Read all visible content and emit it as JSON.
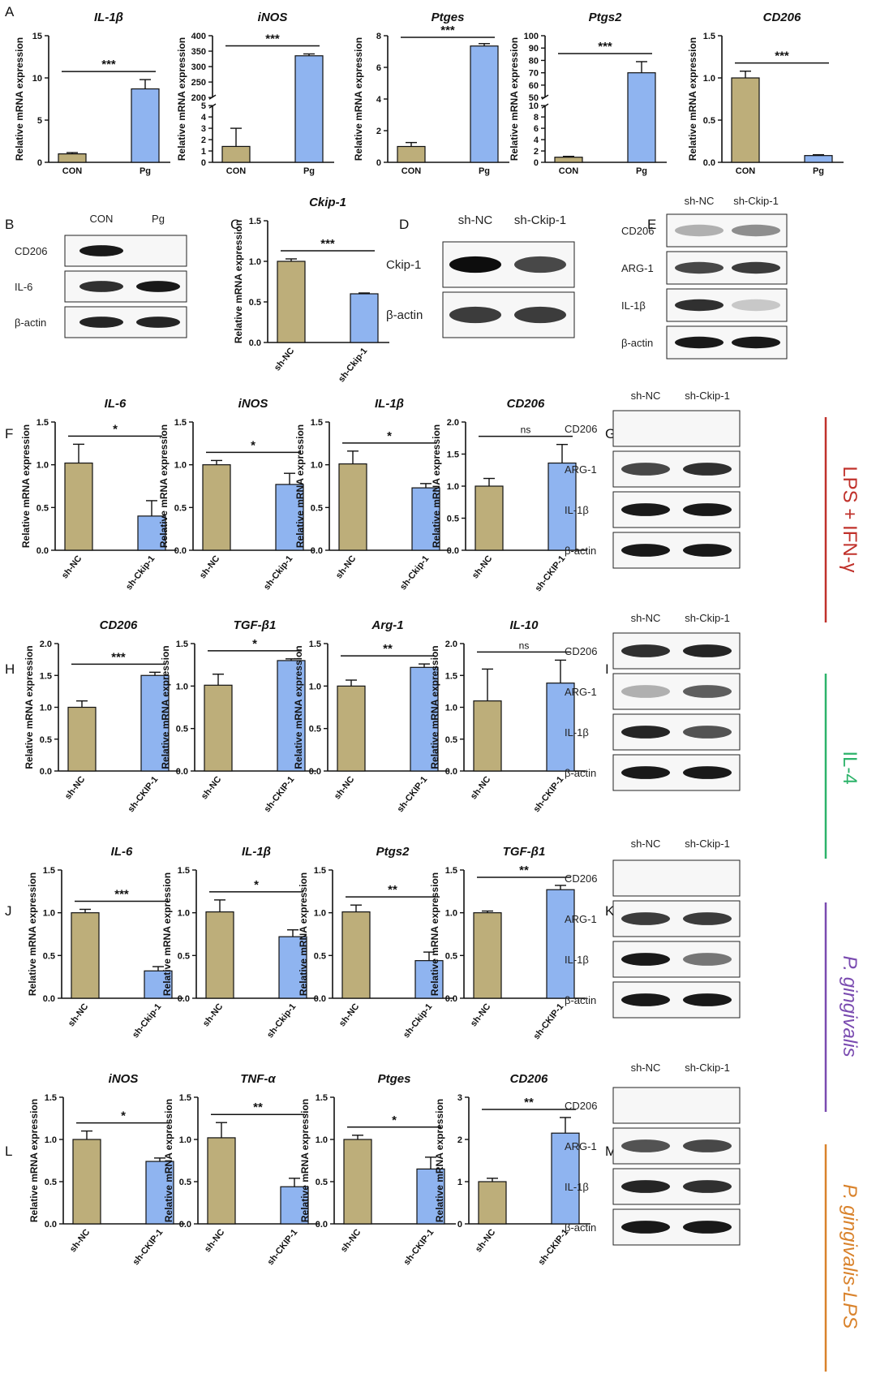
{
  "colors": {
    "con": "#BDAE7A",
    "treat": "#8FB4F0",
    "errorbar": "#111111"
  },
  "y_axis_label": "Relative mRNA expression",
  "conditions": [
    {
      "text": "LPS + IFN-γ",
      "color": "#C0312B"
    },
    {
      "text": "IL-4",
      "color": "#2DB36A"
    },
    {
      "text": "P. gingivalis",
      "color": "#7A4BB0"
    },
    {
      "text": "P. gingivalis-LPS",
      "color": "#D9822B"
    }
  ],
  "chart_data": [
    {
      "panel": "A",
      "type": "bar",
      "title": "IL-1β",
      "categories": [
        "CON",
        "Pg"
      ],
      "values": [
        1.0,
        8.7
      ],
      "errors": [
        0.15,
        1.1
      ],
      "ylim": [
        0,
        15
      ],
      "yticks": [
        0,
        5,
        10,
        15
      ],
      "significance": "***"
    },
    {
      "panel": "A",
      "type": "bar",
      "title": "iNOS",
      "categories": [
        "CON",
        "Pg"
      ],
      "values": [
        1.4,
        335
      ],
      "errors": [
        1.6,
        6
      ],
      "broken_axis": {
        "lower": [
          0,
          5
        ],
        "upper": [
          200,
          400
        ]
      },
      "yticks": [
        "0",
        "1",
        "2",
        "3",
        "4",
        "5",
        "200",
        "250",
        "300",
        "350",
        "400"
      ],
      "significance": "***"
    },
    {
      "panel": "A",
      "type": "bar",
      "title": "Ptges",
      "categories": [
        "CON",
        "Pg"
      ],
      "values": [
        1.0,
        7.35
      ],
      "errors": [
        0.25,
        0.15
      ],
      "ylim": [
        0,
        8
      ],
      "yticks": [
        0,
        2,
        4,
        6,
        8
      ],
      "significance": "***"
    },
    {
      "panel": "A",
      "type": "bar",
      "title": "Ptgs2",
      "categories": [
        "CON",
        "Pg"
      ],
      "values": [
        0.9,
        70
      ],
      "errors": [
        0.15,
        9
      ],
      "broken_axis": {
        "lower": [
          0,
          10
        ],
        "upper": [
          50,
          100
        ]
      },
      "yticks": [
        "0",
        "2",
        "4",
        "6",
        "8",
        "10",
        "50",
        "60",
        "70",
        "80",
        "90",
        "100"
      ],
      "significance": "***"
    },
    {
      "panel": "A",
      "type": "bar",
      "title": "CD206",
      "categories": [
        "CON",
        "Pg"
      ],
      "values": [
        1.0,
        0.08
      ],
      "errors": [
        0.08,
        0.01
      ],
      "ylim": [
        0,
        1.5
      ],
      "yticks": [
        "0.0",
        "0.5",
        "1.0",
        "1.5"
      ],
      "significance": "***"
    },
    {
      "panel": "C",
      "type": "bar",
      "title": "Ckip-1",
      "categories": [
        "sh-NC",
        "sh-Ckip-1"
      ],
      "values": [
        1.0,
        0.6
      ],
      "errors": [
        0.03,
        0.01
      ],
      "ylim": [
        0,
        1.5
      ],
      "yticks": [
        "0.0",
        "0.5",
        "1.0",
        "1.5"
      ],
      "significance": "***"
    },
    {
      "panel": "F",
      "type": "bar",
      "title": "IL-6",
      "categories": [
        "sh-NC",
        "sh-Ckip-1"
      ],
      "values": [
        1.02,
        0.4
      ],
      "errors": [
        0.22,
        0.18
      ],
      "ylim": [
        0,
        1.5
      ],
      "yticks": [
        "0.0",
        "0.5",
        "1.0",
        "1.5"
      ],
      "significance": "*"
    },
    {
      "panel": "F",
      "type": "bar",
      "title": "iNOS",
      "categories": [
        "sh-NC",
        "sh-Ckip-1"
      ],
      "values": [
        1.0,
        0.77
      ],
      "errors": [
        0.05,
        0.13
      ],
      "ylim": [
        0,
        1.5
      ],
      "yticks": [
        "0.0",
        "0.5",
        "1.0",
        "1.5"
      ],
      "significance": "*"
    },
    {
      "panel": "F",
      "type": "bar",
      "title": "IL-1β",
      "categories": [
        "sh-NC",
        "sh-Ckip-1"
      ],
      "values": [
        1.01,
        0.73
      ],
      "errors": [
        0.15,
        0.05
      ],
      "ylim": [
        0,
        1.5
      ],
      "yticks": [
        "0.0",
        "0.5",
        "1.0",
        "1.5"
      ],
      "significance": "*"
    },
    {
      "panel": "F",
      "type": "bar",
      "title": "CD206",
      "categories": [
        "sh-NC",
        "sh-CKIP-1"
      ],
      "values": [
        1.0,
        1.36
      ],
      "errors": [
        0.12,
        0.29
      ],
      "ylim": [
        0,
        2.0
      ],
      "yticks": [
        "0.0",
        "0.5",
        "1.0",
        "1.5",
        "2.0"
      ],
      "significance": "ns"
    },
    {
      "panel": "H",
      "type": "bar",
      "title": "CD206",
      "categories": [
        "sh-NC",
        "sh-CKIP-1"
      ],
      "values": [
        1.0,
        1.5
      ],
      "errors": [
        0.1,
        0.05
      ],
      "ylim": [
        0,
        2.0
      ],
      "yticks": [
        "0.0",
        "0.5",
        "1.0",
        "1.5",
        "2.0"
      ],
      "significance": "***"
    },
    {
      "panel": "H",
      "type": "bar",
      "title": "TGF-β1",
      "categories": [
        "sh-NC",
        "sh-CKIP-1"
      ],
      "values": [
        1.01,
        1.3
      ],
      "errors": [
        0.13,
        0.02
      ],
      "ylim": [
        0,
        1.5
      ],
      "yticks": [
        "0.0",
        "0.5",
        "1.0",
        "1.5"
      ],
      "significance": "*"
    },
    {
      "panel": "H",
      "type": "bar",
      "title": "Arg-1",
      "categories": [
        "sh-NC",
        "sh-CKIP-1"
      ],
      "values": [
        1.0,
        1.22
      ],
      "errors": [
        0.07,
        0.04
      ],
      "ylim": [
        0,
        1.5
      ],
      "yticks": [
        "0.0",
        "0.5",
        "1.0",
        "1.5"
      ],
      "significance": "**"
    },
    {
      "panel": "H",
      "type": "bar",
      "title": "IL-10",
      "categories": [
        "sh-NC",
        "sh-CKIP-1"
      ],
      "values": [
        1.1,
        1.38
      ],
      "errors": [
        0.5,
        0.36
      ],
      "ylim": [
        0,
        2.0
      ],
      "yticks": [
        "0.0",
        "0.5",
        "1.0",
        "1.5",
        "2.0"
      ],
      "significance": "ns"
    },
    {
      "panel": "J",
      "type": "bar",
      "title": "IL-6",
      "categories": [
        "sh-NC",
        "sh-Ckip-1"
      ],
      "values": [
        1.0,
        0.32
      ],
      "errors": [
        0.04,
        0.05
      ],
      "ylim": [
        0,
        1.5
      ],
      "yticks": [
        "0.0",
        "0.5",
        "1.0",
        "1.5"
      ],
      "significance": "***"
    },
    {
      "panel": "J",
      "type": "bar",
      "title": "IL-1β",
      "categories": [
        "sh-NC",
        "sh-Ckip-1"
      ],
      "values": [
        1.01,
        0.72
      ],
      "errors": [
        0.14,
        0.08
      ],
      "ylim": [
        0,
        1.5
      ],
      "yticks": [
        "0.0",
        "0.5",
        "1.0",
        "1.5"
      ],
      "significance": "*"
    },
    {
      "panel": "J",
      "type": "bar",
      "title": "Ptgs2",
      "categories": [
        "sh-NC",
        "sh-Ckip-1"
      ],
      "values": [
        1.01,
        0.44
      ],
      "errors": [
        0.08,
        0.1
      ],
      "ylim": [
        0,
        1.5
      ],
      "yticks": [
        "0.0",
        "0.5",
        "1.0",
        "1.5"
      ],
      "significance": "**"
    },
    {
      "panel": "J",
      "type": "bar",
      "title": "TGF-β1",
      "categories": [
        "sh-NC",
        "sh-CKIP-1"
      ],
      "values": [
        1.0,
        1.27
      ],
      "errors": [
        0.02,
        0.05
      ],
      "ylim": [
        0,
        1.5
      ],
      "yticks": [
        "0.0",
        "0.5",
        "1.0",
        "1.5"
      ],
      "significance": "**"
    },
    {
      "panel": "L",
      "type": "bar",
      "title": "iNOS",
      "categories": [
        "sh-NC",
        "sh-CKIP-1"
      ],
      "values": [
        1.0,
        0.74
      ],
      "errors": [
        0.1,
        0.04
      ],
      "ylim": [
        0,
        1.5
      ],
      "yticks": [
        "0.0",
        "0.5",
        "1.0",
        "1.5"
      ],
      "significance": "*"
    },
    {
      "panel": "L",
      "type": "bar",
      "title": "TNF-α",
      "categories": [
        "sh-NC",
        "sh-CKIP-1"
      ],
      "values": [
        1.02,
        0.44
      ],
      "errors": [
        0.18,
        0.1
      ],
      "ylim": [
        0,
        1.5
      ],
      "yticks": [
        "0.0",
        "0.5",
        "1.0",
        "1.5"
      ],
      "significance": "**"
    },
    {
      "panel": "L",
      "type": "bar",
      "title": "Ptges",
      "categories": [
        "sh-NC",
        "sh-CKIP-1"
      ],
      "values": [
        1.0,
        0.65
      ],
      "errors": [
        0.05,
        0.14
      ],
      "ylim": [
        0,
        1.5
      ],
      "yticks": [
        "0.0",
        "0.5",
        "1.0",
        "1.5"
      ],
      "significance": "*"
    },
    {
      "panel": "L",
      "type": "bar",
      "title": "CD206",
      "categories": [
        "sh-NC",
        "sh-CKIP-1"
      ],
      "values": [
        1.0,
        2.15
      ],
      "errors": [
        0.08,
        0.37
      ],
      "ylim": [
        0,
        3
      ],
      "yticks": [
        "0",
        "1",
        "2",
        "3"
      ],
      "significance": "**"
    }
  ],
  "western_blots": [
    {
      "panel": "B",
      "columns": [
        "CON",
        "Pg"
      ],
      "rows": [
        "CD206",
        "IL-6",
        "β-actin"
      ],
      "intensity": [
        [
          0.95,
          0.0
        ],
        [
          0.85,
          0.95
        ],
        [
          0.9,
          0.9
        ]
      ]
    },
    {
      "panel": "D",
      "columns": [
        "sh-NC",
        "sh-Ckip-1"
      ],
      "rows": [
        "Ckip-1",
        "β-actin"
      ],
      "intensity": [
        [
          1.0,
          0.75
        ],
        [
          0.8,
          0.8
        ]
      ]
    },
    {
      "panel": "E",
      "columns": [
        "sh-NC",
        "sh-Ckip-1"
      ],
      "rows": [
        "CD206",
        "ARG-1",
        "IL-1β",
        "β-actin"
      ],
      "intensity": [
        [
          0.3,
          0.45
        ],
        [
          0.75,
          0.8
        ],
        [
          0.85,
          0.2
        ],
        [
          0.95,
          0.95
        ]
      ]
    },
    {
      "panel": "G",
      "columns": [
        "sh-NC",
        "sh-Ckip-1"
      ],
      "rows": [
        "CD206",
        "ARG-1",
        "IL-1β",
        "β-actin"
      ],
      "intensity": [
        [
          0.0,
          0.0
        ],
        [
          0.75,
          0.85
        ],
        [
          0.95,
          0.95
        ],
        [
          0.95,
          0.95
        ]
      ]
    },
    {
      "panel": "I",
      "columns": [
        "sh-NC",
        "sh-Ckip-1"
      ],
      "rows": [
        "CD206",
        "ARG-1",
        "IL-1β",
        "β-actin"
      ],
      "intensity": [
        [
          0.85,
          0.9
        ],
        [
          0.3,
          0.65
        ],
        [
          0.9,
          0.7
        ],
        [
          0.95,
          0.95
        ]
      ]
    },
    {
      "panel": "K",
      "columns": [
        "sh-NC",
        "sh-Ckip-1"
      ],
      "rows": [
        "CD206",
        "ARG-1",
        "IL-1β",
        "β-actin"
      ],
      "intensity": [
        [
          0.0,
          0.0
        ],
        [
          0.8,
          0.8
        ],
        [
          0.95,
          0.55
        ],
        [
          0.95,
          0.95
        ]
      ]
    },
    {
      "panel": "M",
      "columns": [
        "sh-NC",
        "sh-Ckip-1"
      ],
      "rows": [
        "CD206",
        "ARG-1",
        "IL-1β",
        "β-actin"
      ],
      "intensity": [
        [
          0.0,
          0.0
        ],
        [
          0.7,
          0.75
        ],
        [
          0.9,
          0.85
        ],
        [
          0.95,
          0.95
        ]
      ]
    }
  ]
}
